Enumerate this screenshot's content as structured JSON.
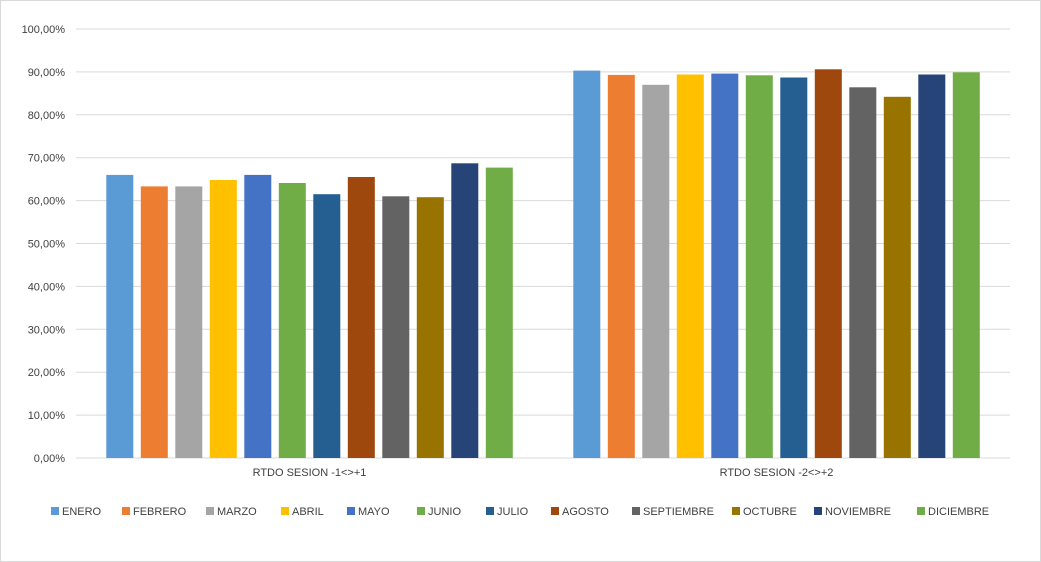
{
  "chart_data": {
    "type": "bar",
    "categories": [
      "RTDO SESION -1<>+1",
      "RTDO SESION -2<>+2"
    ],
    "series": [
      {
        "name": "ENERO",
        "color": "#5b9bd5",
        "values": [
          66.0,
          90.3
        ]
      },
      {
        "name": "FEBRERO",
        "color": "#ed7d31",
        "values": [
          63.3,
          89.3
        ]
      },
      {
        "name": "MARZO",
        "color": "#a5a5a5",
        "values": [
          63.3,
          87.0
        ]
      },
      {
        "name": "ABRIL",
        "color": "#ffc000",
        "values": [
          64.8,
          89.4
        ]
      },
      {
        "name": "MAYO",
        "color": "#4472c4",
        "values": [
          66.0,
          89.6
        ]
      },
      {
        "name": "JUNIO",
        "color": "#70ad47",
        "values": [
          64.1,
          89.2
        ]
      },
      {
        "name": "JULIO",
        "color": "#255e91",
        "values": [
          61.5,
          88.7
        ]
      },
      {
        "name": "AGOSTO",
        "color": "#9e480e",
        "values": [
          65.5,
          90.6
        ]
      },
      {
        "name": "SEPTIEMBRE",
        "color": "#636363",
        "values": [
          61.0,
          86.4
        ]
      },
      {
        "name": "OCTUBRE",
        "color": "#997300",
        "values": [
          60.8,
          84.2
        ]
      },
      {
        "name": "NOVIEMBRE",
        "color": "#264478",
        "values": [
          68.7,
          89.4
        ]
      },
      {
        "name": "DICIEMBRE",
        "color": "#70ad47",
        "values": [
          67.7,
          89.9
        ]
      }
    ],
    "ylim": [
      0,
      100
    ],
    "yticks": [
      "0,00%",
      "10,00%",
      "20,00%",
      "30,00%",
      "40,00%",
      "50,00%",
      "60,00%",
      "70,00%",
      "80,00%",
      "90,00%",
      "100,00%"
    ],
    "grid": true,
    "legend": "bottom",
    "gridColor": "#d9d9d9"
  }
}
